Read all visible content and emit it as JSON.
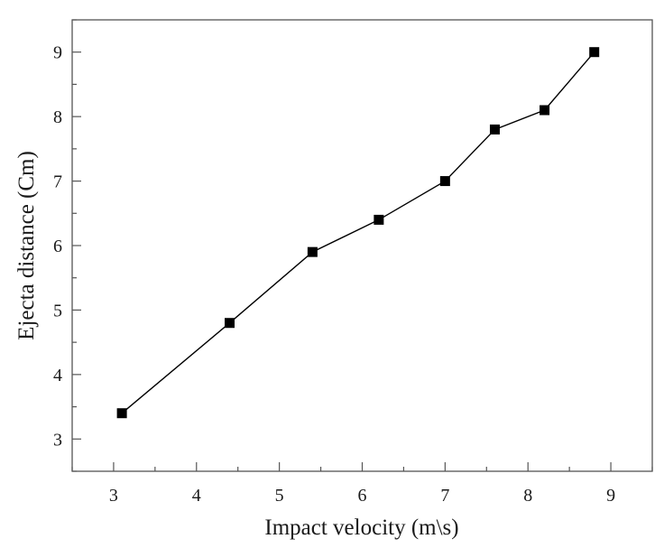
{
  "chart_data": {
    "type": "line",
    "title": "",
    "xlabel": "Impact velocity (m\\s)",
    "ylabel": "Ejecta distance (Cm)",
    "xlim": [
      2.5,
      9.5
    ],
    "ylim": [
      2.5,
      9.5
    ],
    "x_ticks": [
      3,
      4,
      5,
      6,
      7,
      8,
      9
    ],
    "y_ticks": [
      3,
      4,
      5,
      6,
      7,
      8,
      9
    ],
    "x_minor_step": 0.5,
    "y_minor_step": 0.5,
    "grid": false,
    "legend": null,
    "series": [
      {
        "name": "Ejecta distance",
        "marker": "square",
        "color": "#000000",
        "x": [
          3.1,
          4.4,
          5.4,
          6.2,
          7.0,
          7.6,
          8.2,
          8.8
        ],
        "y": [
          3.4,
          4.8,
          5.9,
          6.4,
          7.0,
          7.8,
          8.1,
          9.0
        ]
      }
    ]
  }
}
